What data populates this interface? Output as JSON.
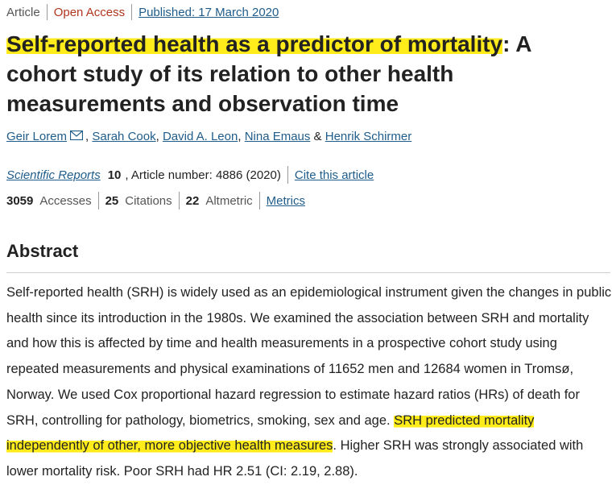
{
  "article_meta": {
    "type": "Article",
    "access": "Open Access",
    "published": "Published: 17 March 2020"
  },
  "title": {
    "highlighted": "Self-reported health as a predictor of mortality",
    "rest": ": A cohort study of its relation to other health measurements and observation time"
  },
  "authors": [
    {
      "name": "Geir Lorem",
      "has_email": true,
      "suffix": ", "
    },
    {
      "name": "Sarah Cook",
      "suffix": ", "
    },
    {
      "name": "David A. Leon",
      "suffix": ", "
    },
    {
      "name": "Nina Emaus",
      "suffix": " & "
    },
    {
      "name": "Henrik Schirmer",
      "suffix": ""
    }
  ],
  "journal": {
    "name": "Scientific Reports",
    "volume": "10",
    "article_number": ", Article number: 4886 (2020)",
    "cite_label": "Cite this article"
  },
  "metrics": {
    "accesses_count": "3059",
    "accesses_label": "Accesses",
    "citations_count": "25",
    "citations_label": "Citations",
    "altmetric_count": "22",
    "altmetric_label": "Altmetric",
    "metrics_link": "Metrics"
  },
  "abstract": {
    "heading": "Abstract",
    "text_before": "Self-reported health (SRH) is widely used as an epidemiological instrument given the changes in public health since its introduction in the 1980s. We examined the association between SRH and mortality and how this is affected by time and health measurements in a prospective cohort study using repeated measurements and physical examinations of 11652 men and 12684 women in Tromsø, Norway. We used Cox proportional hazard regression to estimate hazard ratios (HRs) of death for SRH, controlling for pathology, biometrics, smoking, sex and age. ",
    "text_highlighted": "SRH predicted mortality independently of other, more objective health measures",
    "text_after": ". Higher SRH was strongly associated with lower mortality risk. Poor SRH had HR 2.51 (CI: 2.19, 2.88)."
  },
  "colors": {
    "link": "#1f5c8a",
    "open_access": "#b1361e",
    "highlight": "#ffec1a"
  }
}
